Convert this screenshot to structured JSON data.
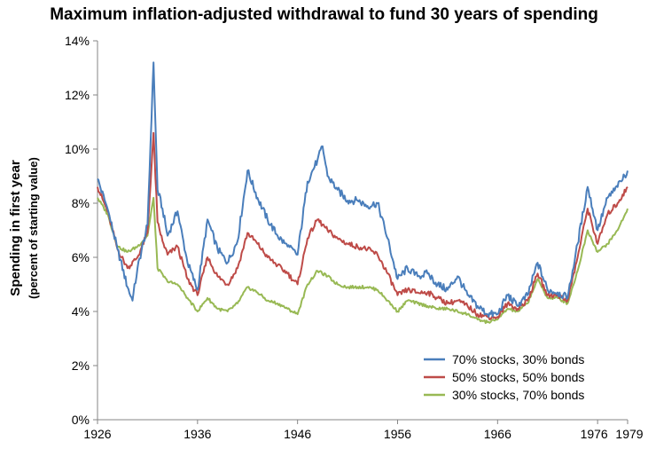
{
  "chart_data": {
    "type": "line",
    "title": "Maximum inflation-adjusted withdrawal to fund 30 years of spending",
    "ylabel": "Spending in first year",
    "ylabel_sub": "(percent of starting value)",
    "xlabel": "",
    "xlim": [
      1926,
      1979
    ],
    "ylim": [
      0,
      14
    ],
    "x_ticks": [
      1926,
      1936,
      1946,
      1956,
      1966,
      1976,
      1979
    ],
    "x_tick_labels": [
      "1926",
      "1936",
      "1946",
      "1956",
      "1966",
      "1976",
      "1979"
    ],
    "y_ticks": [
      0,
      2,
      4,
      6,
      8,
      10,
      12,
      14
    ],
    "y_tick_labels": [
      "0%",
      "2%",
      "4%",
      "6%",
      "8%",
      "10%",
      "12%",
      "14%"
    ],
    "grid": false,
    "legend_position": "bottom-right",
    "series": [
      {
        "name": "70% stocks, 30% bonds",
        "color": "#4a7ebb",
        "x": [
          1926,
          1927,
          1928,
          1929,
          1929.5,
          1930,
          1931,
          1931.6,
          1932,
          1932.5,
          1933,
          1934,
          1935,
          1936,
          1937,
          1938,
          1939,
          1940,
          1941,
          1942,
          1943,
          1944,
          1945,
          1946,
          1947,
          1948,
          1948.5,
          1949,
          1950,
          1951,
          1952,
          1953,
          1954,
          1955,
          1956,
          1957,
          1958,
          1959,
          1960,
          1961,
          1962,
          1963,
          1964,
          1965,
          1966,
          1967,
          1968,
          1969,
          1970,
          1971,
          1972,
          1973,
          1974,
          1975,
          1976,
          1977,
          1978,
          1979
        ],
        "y": [
          8.9,
          7.8,
          6.3,
          4.9,
          4.4,
          5.6,
          7.2,
          13.2,
          8.5,
          7.8,
          6.8,
          7.7,
          5.8,
          4.8,
          7.4,
          6.3,
          5.8,
          6.6,
          9.2,
          8.2,
          7.4,
          6.8,
          6.4,
          6.1,
          8.8,
          9.6,
          10.1,
          9.0,
          8.5,
          8.1,
          8.1,
          7.9,
          8.0,
          6.7,
          5.2,
          5.6,
          5.3,
          5.4,
          5.0,
          4.8,
          5.3,
          4.6,
          4.2,
          3.9,
          3.9,
          4.6,
          4.2,
          4.6,
          5.8,
          4.8,
          4.7,
          4.5,
          6.5,
          8.6,
          7.0,
          8.2,
          8.6,
          9.2
        ]
      },
      {
        "name": "50% stocks, 50% bonds",
        "color": "#be4b48",
        "x": [
          1926,
          1927,
          1928,
          1929,
          1930,
          1931,
          1931.6,
          1932,
          1932.5,
          1933,
          1934,
          1935,
          1936,
          1937,
          1938,
          1939,
          1940,
          1941,
          1942,
          1943,
          1944,
          1945,
          1946,
          1947,
          1948,
          1949,
          1950,
          1951,
          1952,
          1953,
          1954,
          1955,
          1956,
          1957,
          1958,
          1959,
          1960,
          1961,
          1962,
          1963,
          1964,
          1965,
          1966,
          1967,
          1968,
          1969,
          1970,
          1971,
          1972,
          1973,
          1974,
          1975,
          1976,
          1977,
          1978,
          1979
        ],
        "y": [
          8.6,
          7.7,
          6.3,
          5.6,
          6.0,
          6.9,
          10.6,
          7.3,
          6.6,
          6.1,
          6.4,
          5.2,
          4.6,
          6.0,
          5.3,
          5.0,
          5.6,
          6.9,
          6.5,
          6.0,
          5.7,
          5.4,
          5.0,
          6.7,
          7.4,
          7.0,
          6.7,
          6.5,
          6.4,
          6.3,
          6.1,
          5.4,
          4.6,
          4.8,
          4.7,
          4.7,
          4.5,
          4.3,
          4.4,
          4.2,
          3.9,
          3.8,
          3.8,
          4.3,
          4.1,
          4.4,
          5.4,
          4.6,
          4.6,
          4.4,
          6.0,
          7.8,
          6.5,
          7.6,
          8.0,
          8.6
        ]
      },
      {
        "name": "30% stocks, 70% bonds",
        "color": "#98b954",
        "x": [
          1926,
          1927,
          1928,
          1929,
          1930,
          1931,
          1931.6,
          1932,
          1933,
          1934,
          1935,
          1936,
          1937,
          1938,
          1939,
          1940,
          1941,
          1942,
          1943,
          1944,
          1945,
          1946,
          1947,
          1948,
          1949,
          1950,
          1951,
          1952,
          1953,
          1954,
          1955,
          1956,
          1957,
          1958,
          1959,
          1960,
          1961,
          1962,
          1963,
          1964,
          1965,
          1966,
          1967,
          1968,
          1969,
          1970,
          1971,
          1972,
          1973,
          1974,
          1975,
          1976,
          1977,
          1978,
          1979
        ],
        "y": [
          8.2,
          7.6,
          6.4,
          6.2,
          6.4,
          6.8,
          8.2,
          5.6,
          5.1,
          5.0,
          4.5,
          4.0,
          4.5,
          4.1,
          4.0,
          4.3,
          4.9,
          4.7,
          4.4,
          4.3,
          4.1,
          3.9,
          5.0,
          5.5,
          5.3,
          5.0,
          4.9,
          4.9,
          4.9,
          4.8,
          4.4,
          4.0,
          4.4,
          4.3,
          4.2,
          4.1,
          4.1,
          4.0,
          3.9,
          3.7,
          3.6,
          3.7,
          4.1,
          4.0,
          4.3,
          5.2,
          4.5,
          4.5,
          4.3,
          5.5,
          7.0,
          6.2,
          6.5,
          7.0,
          7.8
        ]
      }
    ]
  }
}
